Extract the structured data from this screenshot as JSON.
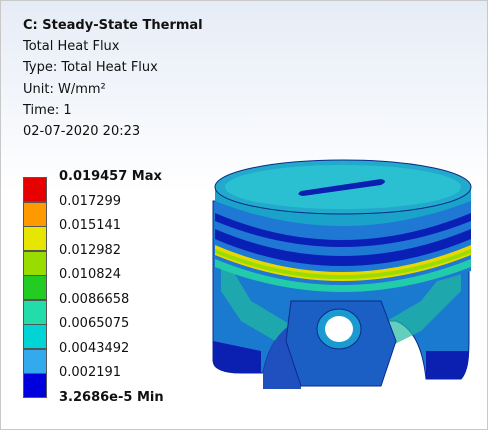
{
  "header": {
    "title": "C: Steady-State Thermal",
    "lines": [
      "Total Heat Flux",
      "Type: Total Heat Flux",
      "Unit: W/mm²",
      "Time: 1",
      "02-07-2020 20:23"
    ]
  },
  "legend": {
    "labels": [
      "0.019457 Max",
      "0.017299",
      "0.015141",
      "0.012982",
      "0.010824",
      "0.0086658",
      "0.0065075",
      "0.0043492",
      "0.002191",
      "3.2686e-5 Min"
    ],
    "colors": [
      "#e60000",
      "#ff9900",
      "#e6e600",
      "#99dd00",
      "#22cc22",
      "#22ddaa",
      "#00d4d4",
      "#33aaee",
      "#0000dd"
    ]
  }
}
